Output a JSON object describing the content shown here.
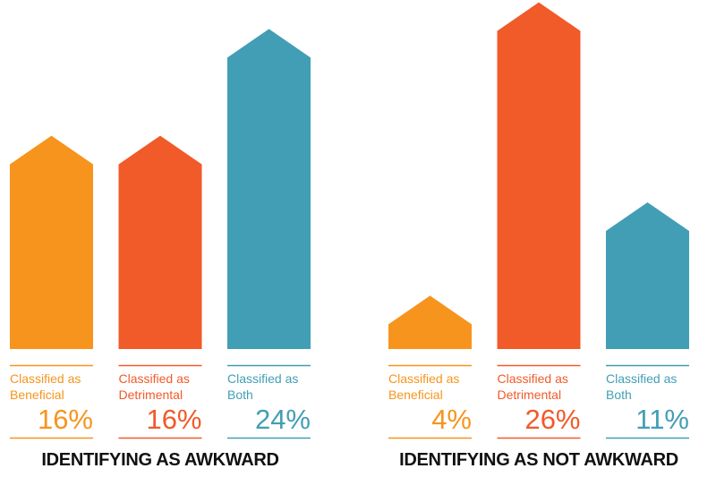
{
  "chart_data": [
    {
      "type": "bar",
      "title": "IDENTIFYING AS AWKWARD",
      "categories": [
        "Classified as Beneficial",
        "Classified as Detrimental",
        "Classified as Both"
      ],
      "values": [
        16,
        16,
        24
      ],
      "value_labels": [
        "16%",
        "16%",
        "24%"
      ],
      "colors": [
        "#f7941d",
        "#f15a29",
        "#429eb5"
      ]
    },
    {
      "type": "bar",
      "title": "IDENTIFYING AS NOT AWKWARD",
      "categories": [
        "Classified as Beneficial",
        "Classified as Detrimental",
        "Classified as Both"
      ],
      "values": [
        4,
        26,
        11
      ],
      "value_labels": [
        "4%",
        "26%",
        "11%"
      ],
      "colors": [
        "#f7941d",
        "#f15a29",
        "#429eb5"
      ]
    }
  ]
}
